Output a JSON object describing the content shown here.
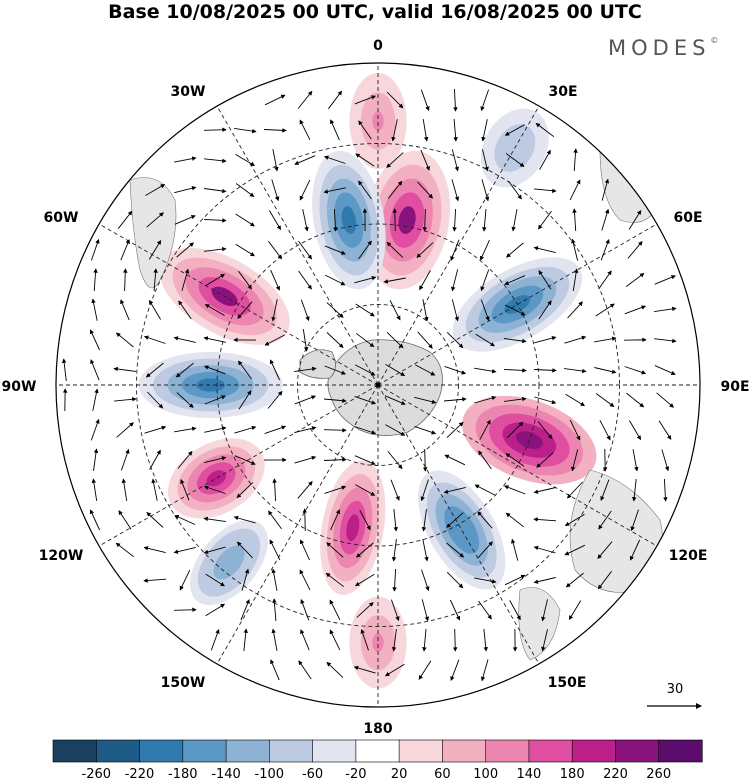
{
  "title": "Base 10/08/2025 00 UTC, valid 16/08/2025 00 UTC",
  "brand": "MODES",
  "brand_mark": "©",
  "longitude_labels": {
    "n": "0",
    "ne": "30E",
    "e1": "60E",
    "e": "90E",
    "se1": "120E",
    "se": "150E",
    "s": "180",
    "sw": "150W",
    "w1": "120W",
    "w": "90W",
    "nw1": "60W",
    "nw": "30W"
  },
  "reference_vector": {
    "value": "30"
  },
  "colorbar": {
    "ticks": [
      "-260",
      "-220",
      "-180",
      "-140",
      "-100",
      "-60",
      "-20",
      "20",
      "60",
      "100",
      "140",
      "180",
      "220",
      "260"
    ],
    "colors": [
      "#1b3f5e",
      "#1f5b87",
      "#2f7bb0",
      "#5b98c5",
      "#8eb2d4",
      "#bccbe2",
      "#e2e4ef",
      "#ffffff",
      "#f7d6dc",
      "#f2b0c0",
      "#ec86b0",
      "#df4ea1",
      "#bb1f8a",
      "#8a127c",
      "#5c0c6c"
    ]
  },
  "chart_data": {
    "type": "polar-stereographic-map",
    "projection": "south-polar",
    "variable": "streamfunction anomaly with wind vectors",
    "valid_time": "16/08/2025 00 UTC",
    "base_time": "10/08/2025 00 UTC",
    "colorbar_range": [
      -260,
      260
    ],
    "anomaly_centers": [
      {
        "lon_label": "0",
        "sign": "positive",
        "value": 100
      },
      {
        "lon_label": "30E",
        "sign": "negative",
        "value": -100
      },
      {
        "lon_label": "10E",
        "sign": "positive",
        "value": 220
      },
      {
        "lon_label": "10W",
        "sign": "negative",
        "value": -220
      },
      {
        "lon_label": "60W",
        "sign": "positive",
        "value": 220
      },
      {
        "lon_label": "60E",
        "sign": "negative",
        "value": -220
      },
      {
        "lon_label": "90W",
        "sign": "negative",
        "value": -200
      },
      {
        "lon_label": "110E",
        "sign": "positive",
        "value": 240
      },
      {
        "lon_label": "120W",
        "sign": "positive",
        "value": 180
      },
      {
        "lon_label": "150E",
        "sign": "negative",
        "value": -180
      },
      {
        "lon_label": "170W",
        "sign": "positive",
        "value": 200
      },
      {
        "lon_label": "140W",
        "sign": "negative",
        "value": -140
      },
      {
        "lon_label": "180",
        "sign": "positive",
        "value": 100
      }
    ]
  }
}
